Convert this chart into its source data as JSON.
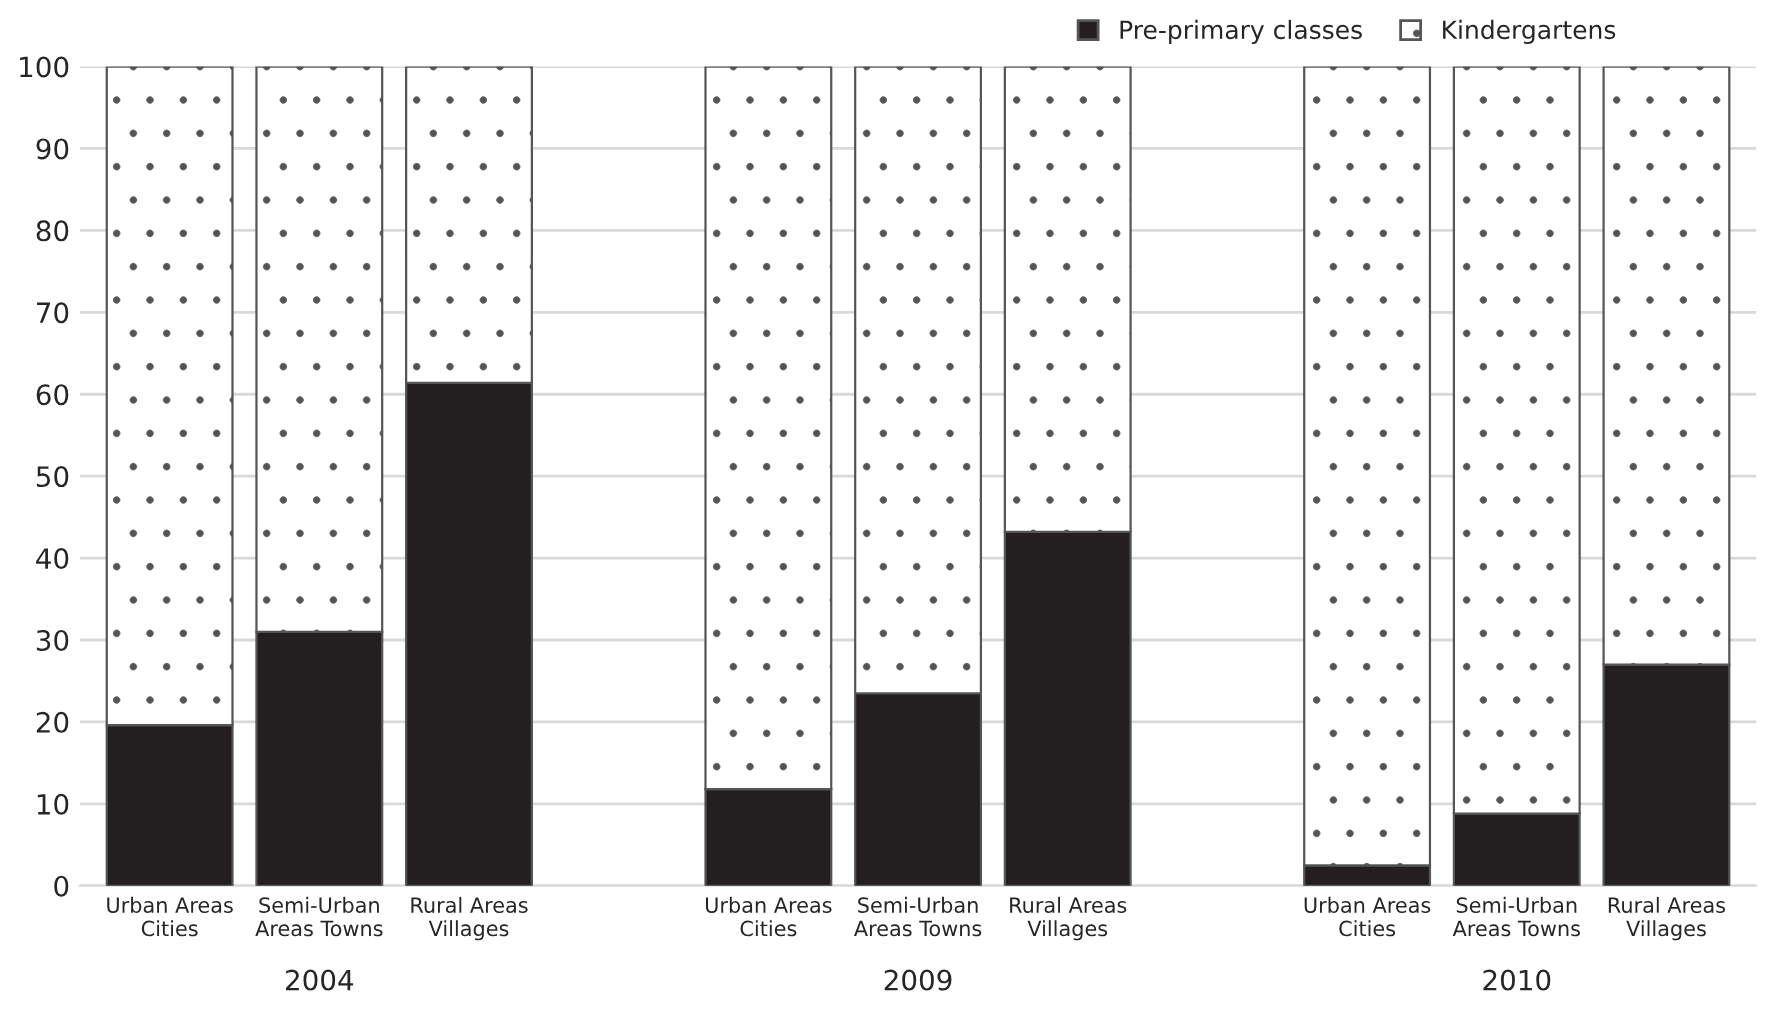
{
  "chart_data": {
    "type": "bar",
    "stacked": true,
    "categories": [
      "Urban Areas\nCities",
      "Semi-Urban\nAreas Towns",
      "Rural Areas\nVillages",
      null,
      "Urban Areas\nCities",
      "Semi-Urban\nAreas Towns",
      "Rural Areas\nVillages",
      null,
      "Urban Areas\nCities",
      "Semi-Urban\nAreas Towns",
      "Rural Areas\nVillages"
    ],
    "series": [
      {
        "name": "Pre-primary classes",
        "color": "#231f20",
        "values": [
          19.6,
          31,
          61.4,
          null,
          11.8,
          23.5,
          43.2,
          null,
          2.5,
          8.8,
          27
        ]
      },
      {
        "name": "Kindergartens",
        "color": "#ffffff",
        "values": [
          80.4,
          69,
          38.6,
          null,
          88.2,
          76.5,
          56.8,
          null,
          97.5,
          91.2,
          73
        ]
      }
    ],
    "annotations": [
      "2004",
      "2009",
      "2010"
    ],
    "ylim": [
      0,
      100
    ],
    "yticks": [
      0,
      10,
      20,
      30,
      40,
      50,
      60,
      70,
      80,
      90,
      100
    ],
    "grid": "y",
    "legend": "top right"
  }
}
